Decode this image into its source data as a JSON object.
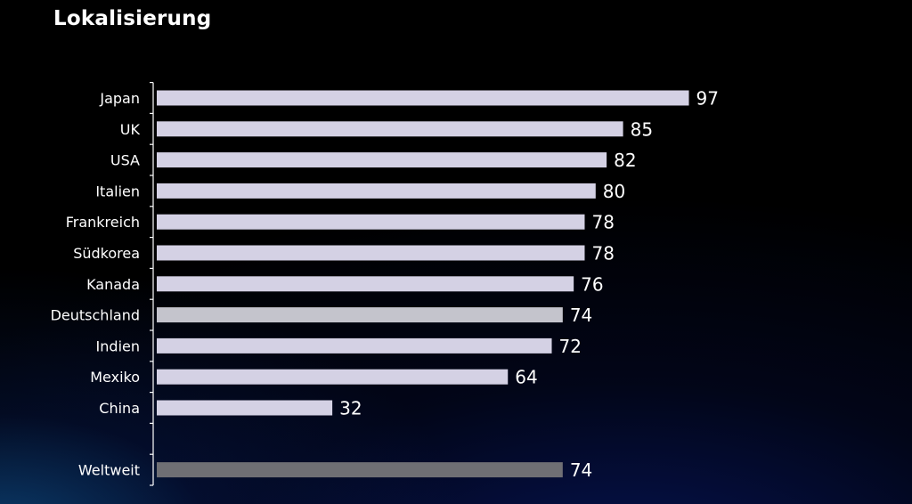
{
  "chart_data": {
    "type": "bar",
    "orientation": "horizontal",
    "title": "Lokalisierung",
    "categories": [
      "Japan",
      "UK",
      "USA",
      "Italien",
      "Frankreich",
      "Südkorea",
      "Kanada",
      "Deutschland",
      "Indien",
      "Mexiko",
      "China",
      "Weltweit"
    ],
    "values": [
      97,
      85,
      82,
      80,
      78,
      78,
      76,
      74,
      72,
      64,
      32,
      74
    ],
    "xlim": [
      0,
      100
    ],
    "grid": false,
    "colors": {
      "bar": "#d4d1e4",
      "bar_highlight": "#c4c4cc",
      "bar_total": "#6f6f74",
      "axis": "#ffffff"
    }
  }
}
